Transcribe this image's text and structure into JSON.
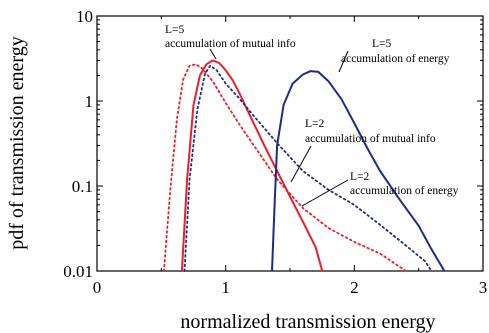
{
  "chart_data": {
    "type": "line",
    "title": "",
    "xlabel": "normalized transmission energy",
    "ylabel": "pdf of transmission energy",
    "xlim": [
      0,
      3
    ],
    "ylim": [
      0.01,
      10
    ],
    "yscale": "log",
    "xticks": [
      0,
      1,
      2,
      3
    ],
    "xtick_labels": [
      "0",
      "1",
      "2",
      "3"
    ],
    "yticks": [
      0.01,
      0.1,
      1,
      10
    ],
    "ytick_labels": [
      "0.01",
      "0.1",
      "1",
      "10"
    ],
    "grid": false,
    "legend": "none",
    "series": [
      {
        "color": "#e8202a",
        "style": "solid",
        "points": [
          [
            0.66,
            0.01
          ],
          [
            0.7,
            0.12
          ],
          [
            0.75,
            0.9
          ],
          [
            0.8,
            2.0
          ],
          [
            0.85,
            2.7
          ],
          [
            0.9,
            3.0
          ],
          [
            0.95,
            2.8
          ],
          [
            1.0,
            2.3
          ],
          [
            1.05,
            1.8
          ],
          [
            1.1,
            1.3
          ],
          [
            1.2,
            0.62
          ],
          [
            1.3,
            0.3
          ],
          [
            1.4,
            0.15
          ],
          [
            1.5,
            0.075
          ],
          [
            1.6,
            0.038
          ],
          [
            1.7,
            0.019
          ],
          [
            1.75,
            0.01
          ]
        ]
      },
      {
        "color": "#e8202a",
        "style": "dotted",
        "points": [
          [
            0.52,
            0.01
          ],
          [
            0.57,
            0.09
          ],
          [
            0.62,
            0.6
          ],
          [
            0.67,
            1.8
          ],
          [
            0.72,
            2.6
          ],
          [
            0.77,
            2.7
          ],
          [
            0.82,
            2.4
          ],
          [
            0.9,
            1.7
          ],
          [
            1.0,
            0.95
          ],
          [
            1.1,
            0.55
          ],
          [
            1.2,
            0.33
          ],
          [
            1.4,
            0.12
          ],
          [
            1.6,
            0.055
          ],
          [
            1.8,
            0.032
          ],
          [
            2.0,
            0.022
          ],
          [
            2.2,
            0.016
          ],
          [
            2.4,
            0.01
          ]
        ]
      },
      {
        "color": "#1f2a8a",
        "style": "dotted",
        "points": [
          [
            0.68,
            0.01
          ],
          [
            0.72,
            0.12
          ],
          [
            0.78,
            0.8
          ],
          [
            0.84,
            2.1
          ],
          [
            0.88,
            2.6
          ],
          [
            0.93,
            2.3
          ],
          [
            1.0,
            1.6
          ],
          [
            1.1,
            1.1
          ],
          [
            1.2,
            0.72
          ],
          [
            1.4,
            0.32
          ],
          [
            1.6,
            0.15
          ],
          [
            1.8,
            0.09
          ],
          [
            2.0,
            0.06
          ],
          [
            2.2,
            0.035
          ],
          [
            2.4,
            0.02
          ],
          [
            2.55,
            0.013
          ],
          [
            2.6,
            0.01
          ]
        ]
      },
      {
        "color": "#1f2a8a",
        "style": "solid",
        "points": [
          [
            1.36,
            0.01
          ],
          [
            1.38,
            0.06
          ],
          [
            1.4,
            0.3
          ],
          [
            1.45,
            0.9
          ],
          [
            1.52,
            1.6
          ],
          [
            1.6,
            2.05
          ],
          [
            1.66,
            2.25
          ],
          [
            1.72,
            2.2
          ],
          [
            1.8,
            1.7
          ],
          [
            1.9,
            1.05
          ],
          [
            2.0,
            0.55
          ],
          [
            2.1,
            0.28
          ],
          [
            2.2,
            0.15
          ],
          [
            2.35,
            0.07
          ],
          [
            2.5,
            0.034
          ],
          [
            2.6,
            0.018
          ],
          [
            2.7,
            0.01
          ]
        ]
      }
    ],
    "annotations": [
      {
        "line1": "L=5",
        "line2": "accumulation of mutual info"
      },
      {
        "line1": "L=5",
        "line2": "accumulation of energy"
      },
      {
        "line1": "L=2",
        "line2": "accumulation of mutual info"
      },
      {
        "line1": "L=2",
        "line2": "accumulation of energy"
      }
    ]
  }
}
